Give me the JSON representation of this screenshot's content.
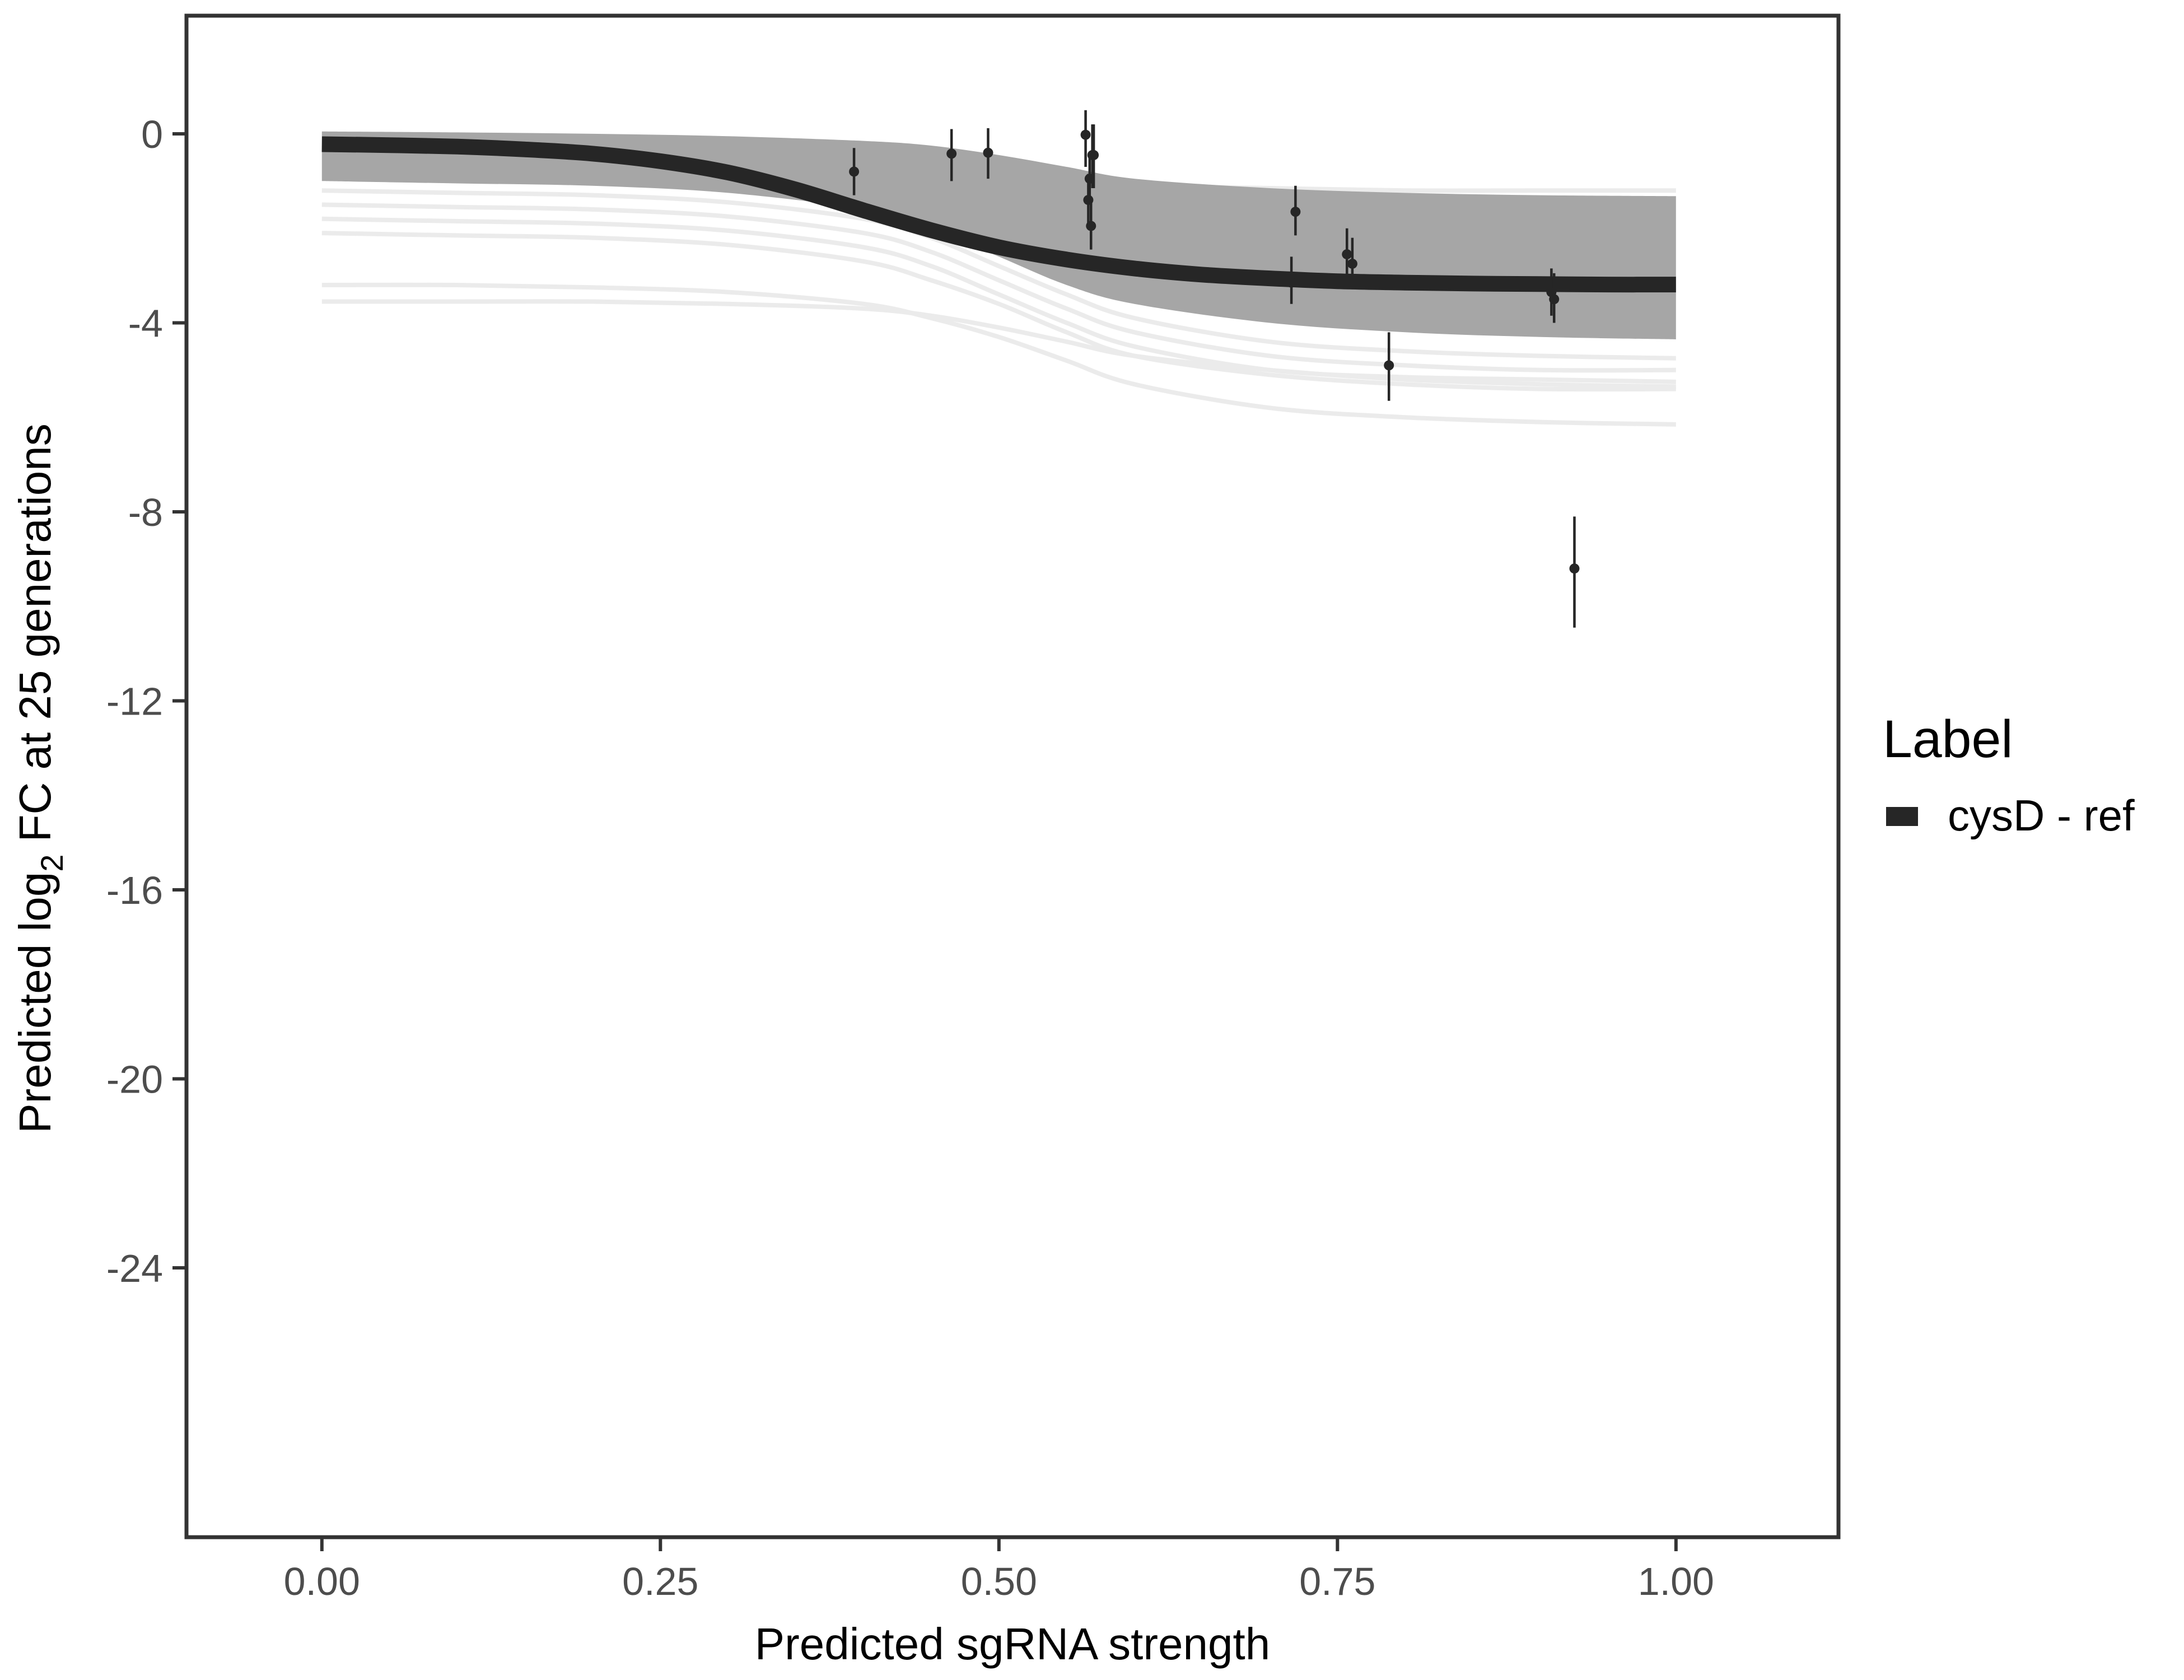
{
  "chart_data": {
    "type": "line",
    "xlabel": "Predicted sgRNA strength",
    "ylabel": {
      "prefix": "Predicted  log",
      "subscript": "2",
      "suffix": " FC at 25 generations"
    },
    "xlim": [
      -0.1,
      1.12
    ],
    "ylim": [
      -29.7,
      2.5
    ],
    "x_ticks": [
      0,
      0.25,
      0.5,
      0.75,
      1
    ],
    "x_tick_labels": [
      "0.00",
      "0.25",
      "0.50",
      "0.75",
      "1.00"
    ],
    "y_ticks": [
      0,
      -4,
      -8,
      -12,
      -16,
      -20,
      -24
    ],
    "y_tick_labels": [
      "0",
      "-4",
      "-8",
      "-12",
      "-16",
      "-20",
      "-24"
    ],
    "grid": false,
    "legend": {
      "title": "Label",
      "placement": "right",
      "entries": [
        {
          "label": "cysD - ref",
          "color": "#262626"
        }
      ]
    },
    "fit_line": {
      "name": "cysD - ref",
      "color": "#262626",
      "x": [
        0,
        0.05,
        0.1,
        0.15,
        0.2,
        0.25,
        0.3,
        0.35,
        0.4,
        0.45,
        0.5,
        0.55,
        0.6,
        0.65,
        0.7,
        0.75,
        0.8,
        0.85,
        0.9,
        0.95,
        1
      ],
      "y": [
        -0.22,
        -0.24,
        -0.27,
        -0.33,
        -0.42,
        -0.58,
        -0.82,
        -1.18,
        -1.62,
        -2.04,
        -2.4,
        -2.66,
        -2.85,
        -2.98,
        -3.06,
        -3.12,
        -3.15,
        -3.17,
        -3.18,
        -3.19,
        -3.19
      ]
    },
    "posterior_band": {
      "color": "#a6a6a6",
      "x": [
        0,
        0.1,
        0.2,
        0.3,
        0.4,
        0.45,
        0.5,
        0.55,
        0.6,
        0.7,
        0.8,
        0.9,
        1
      ],
      "upper": [
        0.05,
        0.03,
        0.0,
        -0.05,
        -0.15,
        -0.25,
        -0.45,
        -0.7,
        -0.95,
        -1.15,
        -1.25,
        -1.3,
        -1.32
      ],
      "lower": [
        -1.0,
        -1.05,
        -1.1,
        -1.25,
        -1.6,
        -2.0,
        -2.6,
        -3.2,
        -3.6,
        -4.0,
        -4.2,
        -4.3,
        -4.35
      ]
    },
    "draw_lines": {
      "color": "#ebebeb",
      "x": [
        0,
        0.1,
        0.2,
        0.3,
        0.4,
        0.45,
        0.5,
        0.55,
        0.6,
        0.7,
        0.8,
        0.9,
        1
      ],
      "lines": [
        [
          -1.2,
          -1.25,
          -1.3,
          -1.45,
          -1.8,
          -2.2,
          -2.8,
          -3.4,
          -3.9,
          -4.4,
          -4.6,
          -4.7,
          -4.75
        ],
        [
          -1.5,
          -1.55,
          -1.6,
          -1.75,
          -2.1,
          -2.5,
          -3.1,
          -3.7,
          -4.2,
          -4.7,
          -4.9,
          -5.0,
          -5.0
        ],
        [
          -1.8,
          -1.85,
          -1.9,
          -2.05,
          -2.4,
          -2.8,
          -3.4,
          -4.0,
          -4.5,
          -5.0,
          -5.15,
          -5.2,
          -5.25
        ],
        [
          -2.1,
          -2.15,
          -2.2,
          -2.35,
          -2.7,
          -3.1,
          -3.6,
          -4.2,
          -4.7,
          -5.1,
          -5.3,
          -5.4,
          -5.4
        ],
        [
          -3.2,
          -3.2,
          -3.25,
          -3.35,
          -3.6,
          -3.9,
          -4.3,
          -4.8,
          -5.3,
          -5.8,
          -6.0,
          -6.1,
          -6.15
        ],
        [
          -3.55,
          -3.55,
          -3.55,
          -3.6,
          -3.7,
          -3.85,
          -4.1,
          -4.4,
          -4.7,
          -5.0,
          -5.2,
          -5.3,
          -5.35
        ],
        [
          -0.9,
          -0.9,
          -0.95,
          -1.05,
          -1.3,
          -1.6,
          -2.0,
          -2.4,
          -2.7,
          -2.9,
          -3.0,
          -3.05,
          -3.05
        ],
        [
          -0.3,
          -0.3,
          -0.3,
          -0.35,
          -0.45,
          -0.6,
          -0.8,
          -1.0,
          -1.1,
          -1.15,
          -1.2,
          -1.2,
          -1.2
        ]
      ]
    },
    "points": {
      "color": "#262626",
      "x": [
        0.393,
        0.465,
        0.492,
        0.564,
        0.566,
        0.567,
        0.568,
        0.569,
        0.57,
        0.716,
        0.719,
        0.757,
        0.761,
        0.788,
        0.908,
        0.91,
        0.925
      ],
      "y": [
        -0.8,
        -0.42,
        -0.4,
        -0.02,
        -1.4,
        -0.95,
        -1.95,
        -0.45,
        -0.45,
        -3.15,
        -1.65,
        -2.55,
        -2.75,
        -4.9,
        -3.35,
        -3.5,
        -9.2
      ],
      "err_low": [
        -1.3,
        -1.0,
        -0.95,
        -0.7,
        -1.95,
        -1.4,
        -2.45,
        -1.15,
        -1.15,
        -3.6,
        -2.15,
        -3.05,
        -3.2,
        -5.65,
        -3.85,
        -4.0,
        -10.45
      ],
      "err_high": [
        -0.3,
        0.1,
        0.12,
        0.5,
        -0.85,
        -0.5,
        -1.45,
        0.2,
        0.2,
        -2.6,
        -1.1,
        -2.0,
        -2.2,
        -4.2,
        -2.85,
        -2.95,
        -8.1
      ]
    }
  }
}
